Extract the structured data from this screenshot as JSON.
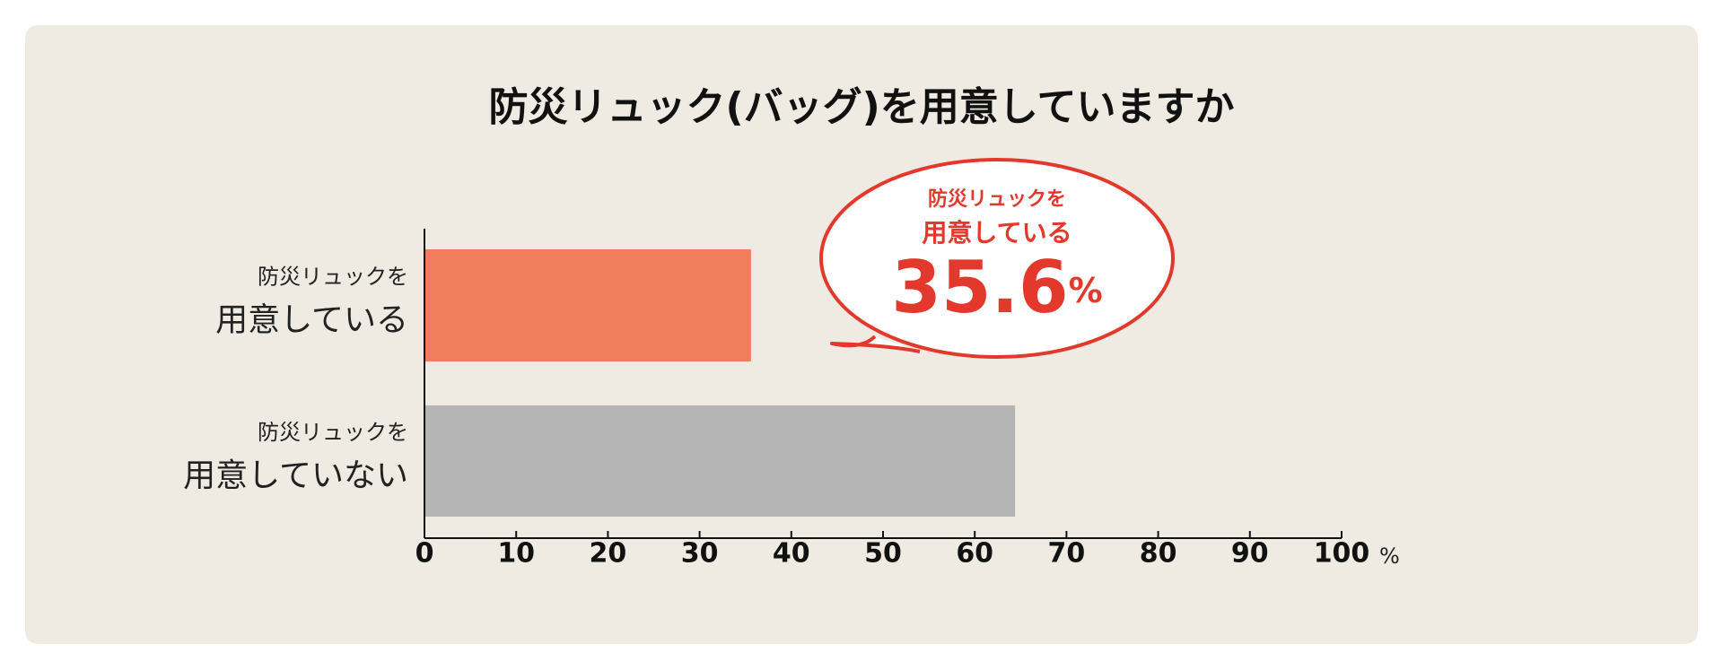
{
  "chart_data": {
    "type": "barh",
    "title": "防災リュック(バッグ)を用意していますか",
    "categories": [
      [
        "防災リュックを",
        "用意している"
      ],
      [
        "防災リュックを",
        "用意していない"
      ]
    ],
    "values": [
      35.6,
      64.4
    ],
    "value_labels": [
      "35.6%",
      null
    ],
    "colors": [
      "#f07d5b",
      "#b5b5b5"
    ],
    "callout_color": "#e3392c",
    "x_unit": "%",
    "xlim": [
      0,
      100
    ],
    "xticks": [
      0,
      10,
      20,
      30,
      40,
      50,
      60,
      70,
      80,
      90,
      100
    ]
  }
}
